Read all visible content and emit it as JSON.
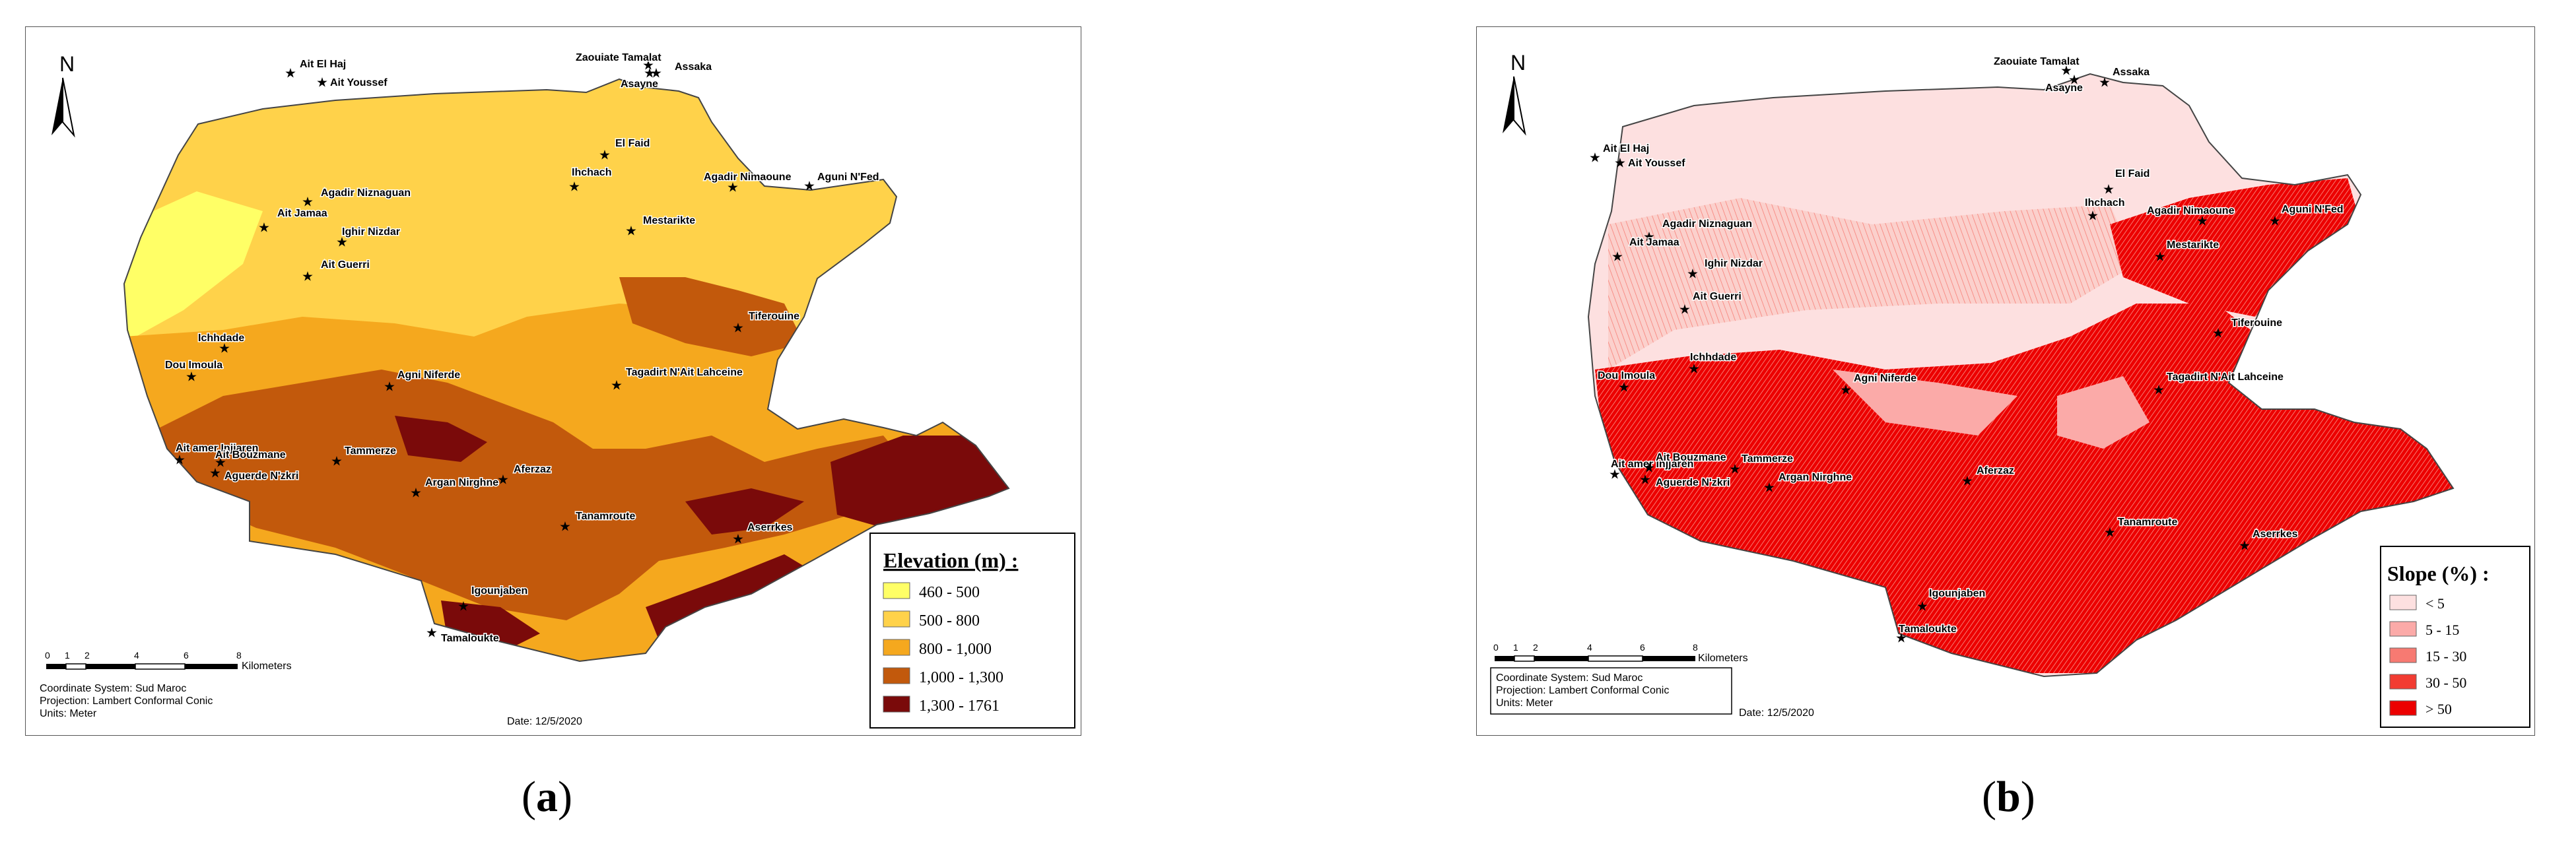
{
  "panels": [
    {
      "id": "a",
      "caption_letter": "a",
      "north_label": "N",
      "legend": {
        "title": "Elevation (m) :",
        "items": [
          {
            "label": "460 - 500",
            "color": "#ffff66"
          },
          {
            "label": "500 - 800",
            "color": "#ffd24a"
          },
          {
            "label": "800 - 1,000",
            "color": "#f5a81e"
          },
          {
            "label": "1,000 - 1,300",
            "color": "#c2590c"
          },
          {
            "label": "1,300 - 1761",
            "color": "#7a0a0a"
          }
        ]
      },
      "scale": {
        "ticks": [
          "0",
          "1",
          "2",
          "4",
          "6",
          "8"
        ],
        "unit": "Kilometers"
      },
      "info_lines": [
        "Coordinate System: Sud Maroc",
        "Projection: Lambert Conformal Conic",
        "Units: Meter"
      ],
      "date_text": "Date: 12/5/2020",
      "places": [
        "Zaouiate Tamalat",
        "Asayne",
        "Assaka",
        "Ait El Haj",
        "Ait Youssef",
        "El Faid",
        "Ihchach",
        "Agadir Nimaoune",
        "Aguni N'Fed",
        "Agadir Niznaguan",
        "Ait Jamaa",
        "Ighir Nizdar",
        "Mestarikte",
        "Ait Guerri",
        "Tiferouine",
        "Ichhdade",
        "Dou Imoula",
        "Agni Niferde",
        "Tagadirt N'Ait Lahceine",
        "Ait amer Injjaren",
        "Ait Bouzmane",
        "Tammerze",
        "Aguerde N'zkri",
        "Argan Nirghne",
        "Aferzaz",
        "Tanamroute",
        "Aserrkes",
        "Igounjaben",
        "Tamaloukte"
      ]
    },
    {
      "id": "b",
      "caption_letter": "b",
      "north_label": "N",
      "legend": {
        "title": "Slope (%) :",
        "items": [
          {
            "label": "< 5",
            "color": "#fde0e0"
          },
          {
            "label": "5 - 15",
            "color": "#fbaaa8"
          },
          {
            "label": "15 - 30",
            "color": "#f77a72"
          },
          {
            "label": "30 - 50",
            "color": "#f23c32"
          },
          {
            "label": "> 50",
            "color": "#ec0000"
          }
        ]
      },
      "scale": {
        "ticks": [
          "0",
          "1",
          "2",
          "4",
          "6",
          "8"
        ],
        "unit": "Kilometers"
      },
      "info_lines": [
        "Coordinate System: Sud Maroc",
        "Projection: Lambert Conformal Conic",
        "Units: Meter"
      ],
      "date_text": "Date: 12/5/2020",
      "places": [
        "Zaouiate Tamalat",
        "Asayne",
        "Assaka",
        "Ait El Haj",
        "Ait Youssef",
        "El Faid",
        "Ihchach",
        "Agadir Nimaoune",
        "Aguni N'Fed",
        "Agadir Niznaguan",
        "Ait Jamaa",
        "Ighir Nizdar",
        "Mestarikte",
        "Ait Guerri",
        "Tiferouine",
        "Ichhdade",
        "Dou Imoula",
        "Agni Niferde",
        "Tagadirt N'Ait Lahceine",
        "Ait amer Injjaren",
        "Ait Bouzmane",
        "Tammerze",
        "Aguerde N'zkri",
        "Argan Nirghne",
        "Aferzaz",
        "Tanamroute",
        "Aserrkes",
        "Igounjaben",
        "Tamaloukte"
      ]
    }
  ]
}
